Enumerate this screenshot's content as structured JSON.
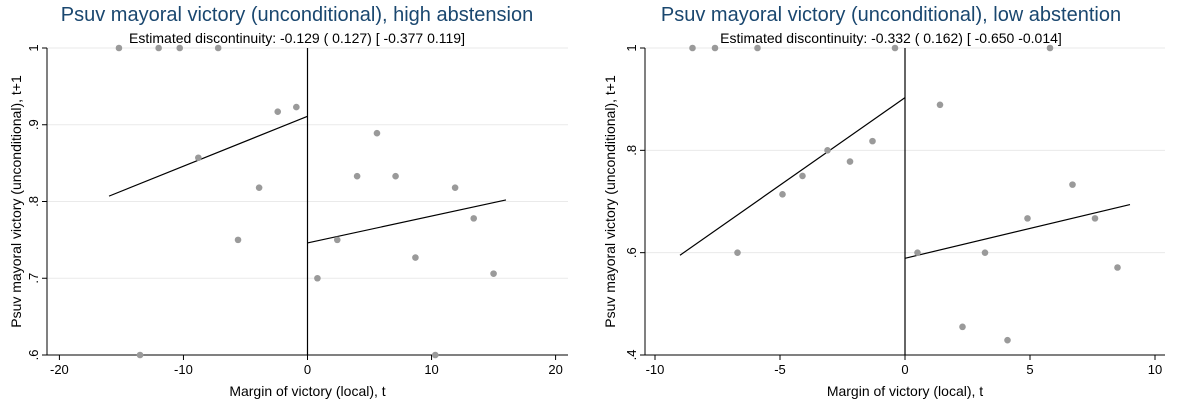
{
  "chart_data": [
    {
      "type": "scatter",
      "title": "Psuv mayoral victory (unconditional), high abstension",
      "subtitle": "Estimated discontinuity: -0.129 ( 0.127) [ -0.377 0.119]",
      "xlabel": "Margin of victory (local), t",
      "ylabel": "Psuv mayoral victory (unconditional), t+1",
      "xlim": [
        -21,
        21
      ],
      "ylim": [
        0.6,
        1.0
      ],
      "xticks": [
        -20,
        -10,
        0,
        10,
        20
      ],
      "xtick_labels": [
        "-20",
        "-10",
        "0",
        "10",
        "20"
      ],
      "yticks": [
        0.6,
        0.7,
        0.8,
        0.9,
        1.0
      ],
      "ytick_labels": [
        ".6",
        ".7",
        ".8",
        ".9",
        "1"
      ],
      "grid": true,
      "cutoff": 0,
      "points": [
        [
          -15.2,
          1.0
        ],
        [
          -12.0,
          1.0
        ],
        [
          -10.3,
          1.0
        ],
        [
          -7.2,
          1.0
        ],
        [
          -2.4,
          0.917
        ],
        [
          -0.9,
          0.923
        ],
        [
          -8.8,
          0.857
        ],
        [
          -3.9,
          0.818
        ],
        [
          -5.6,
          0.75
        ],
        [
          -13.5,
          0.6
        ],
        [
          5.6,
          0.889
        ],
        [
          4.0,
          0.833
        ],
        [
          7.1,
          0.833
        ],
        [
          11.9,
          0.818
        ],
        [
          13.4,
          0.778
        ],
        [
          2.4,
          0.75
        ],
        [
          8.7,
          0.727
        ],
        [
          15.0,
          0.706
        ],
        [
          0.8,
          0.7
        ],
        [
          10.3,
          0.6
        ]
      ],
      "fit_left": [
        [
          -16,
          0.807
        ],
        [
          0,
          0.911
        ]
      ],
      "fit_right": [
        [
          0,
          0.746
        ],
        [
          16,
          0.802
        ]
      ]
    },
    {
      "type": "scatter",
      "title": "Psuv mayoral victory (unconditional), low abstention",
      "subtitle": "Estimated discontinuity: -0.332 ( 0.162) [ -0.650 -0.014]",
      "xlabel": "Margin of victory (local), t",
      "ylabel": "Psuv mayoral victory (unconditional), t+1",
      "xlim": [
        -10.4,
        10.4
      ],
      "ylim": [
        0.4,
        1.0
      ],
      "xticks": [
        -10,
        -5,
        0,
        5,
        10
      ],
      "xtick_labels": [
        "-10",
        "-5",
        "0",
        "5",
        "10"
      ],
      "yticks": [
        0.4,
        0.6,
        0.8,
        1.0
      ],
      "ytick_labels": [
        ".4",
        ".6",
        ".8",
        "1"
      ],
      "grid": true,
      "cutoff": 0,
      "points": [
        [
          -8.5,
          1.0
        ],
        [
          -7.6,
          1.0
        ],
        [
          -5.9,
          1.0
        ],
        [
          -0.4,
          1.0
        ],
        [
          -1.3,
          0.818
        ],
        [
          -3.1,
          0.8
        ],
        [
          -2.2,
          0.778
        ],
        [
          -4.1,
          0.75
        ],
        [
          -4.9,
          0.714
        ],
        [
          -6.7,
          0.6
        ],
        [
          5.8,
          1.0
        ],
        [
          1.4,
          0.889
        ],
        [
          6.7,
          0.733
        ],
        [
          4.9,
          0.667
        ],
        [
          7.6,
          0.667
        ],
        [
          0.5,
          0.6
        ],
        [
          3.2,
          0.6
        ],
        [
          8.5,
          0.571
        ],
        [
          2.3,
          0.455
        ],
        [
          4.1,
          0.429
        ]
      ],
      "fit_left": [
        [
          -9,
          0.595
        ],
        [
          0,
          0.903
        ]
      ],
      "fit_right": [
        [
          0,
          0.589
        ],
        [
          9,
          0.694
        ]
      ]
    }
  ]
}
